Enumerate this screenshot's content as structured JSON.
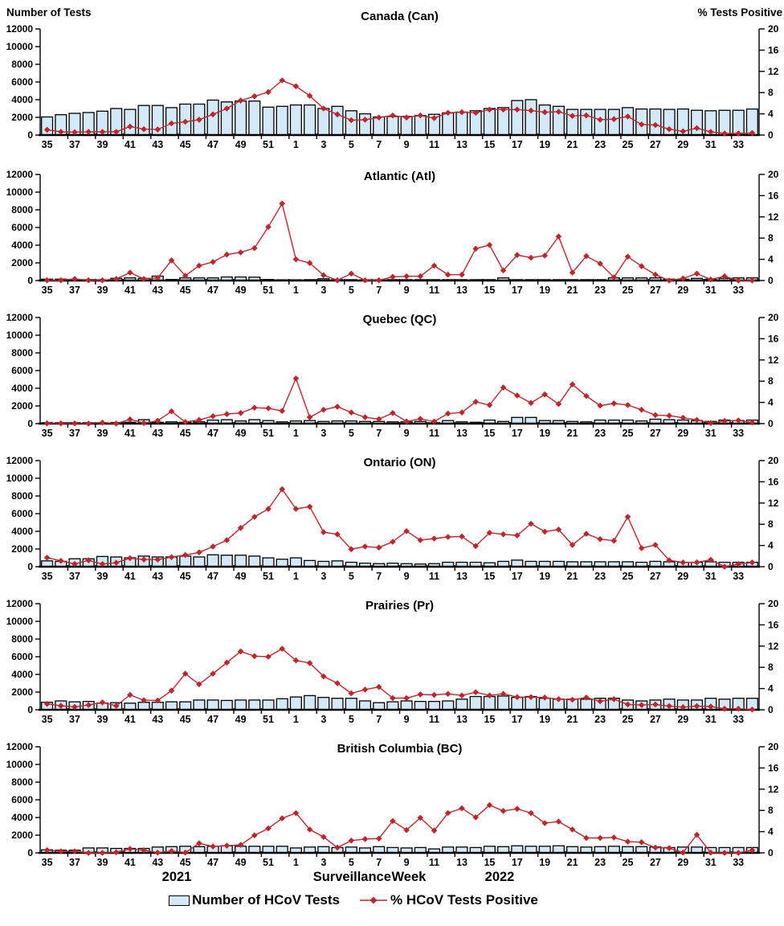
{
  "header": {
    "left_axis_title": "Number of Tests",
    "right_axis_title": "% Tests Positive"
  },
  "footer": {
    "year_left": "2021",
    "axis_title": "Surveillance Week",
    "year_right": "2022"
  },
  "legend": {
    "bars_label": "Number of HCoV Tests",
    "line_label": "% HCoV Tests Positive"
  },
  "colors": {
    "bar_fill": "#d3e9f8",
    "bar_stroke": "#000000",
    "line_color": "#c0252b"
  },
  "chart_data": [
    {
      "type": "bar",
      "title": "Canada (Can)",
      "categories": [
        35,
        36,
        37,
        38,
        39,
        40,
        41,
        42,
        43,
        44,
        45,
        46,
        47,
        48,
        49,
        50,
        51,
        52,
        1,
        2,
        3,
        4,
        5,
        6,
        7,
        8,
        9,
        10,
        11,
        12,
        13,
        14,
        15,
        16,
        17,
        18,
        19,
        20,
        21,
        22,
        23,
        24,
        25,
        26,
        27,
        28,
        29,
        30,
        31,
        32,
        33,
        34
      ],
      "series": [
        {
          "name": "Number of HCoV Tests",
          "type": "bar",
          "axis": "left",
          "values": [
            2050,
            2300,
            2450,
            2550,
            2700,
            3000,
            2900,
            3350,
            3350,
            3100,
            3500,
            3500,
            3950,
            3750,
            3850,
            3850,
            3150,
            3250,
            3400,
            3400,
            3000,
            3250,
            2750,
            2400,
            2050,
            2100,
            2100,
            2200,
            2350,
            2500,
            2600,
            2750,
            3000,
            3100,
            3900,
            4000,
            3400,
            3250,
            2900,
            2900,
            2900,
            2900,
            3100,
            2950,
            2950,
            2900,
            2950,
            2800,
            2750,
            2800,
            2800,
            2950
          ]
        },
        {
          "name": "% HCoV Tests Positive",
          "type": "line",
          "axis": "right",
          "values": [
            1.0,
            0.6,
            0.55,
            0.6,
            0.6,
            0.6,
            1.6,
            1.1,
            1.05,
            2.2,
            2.5,
            2.9,
            3.9,
            5.0,
            6.5,
            7.3,
            8.1,
            10.3,
            9.2,
            7.4,
            5.0,
            3.9,
            2.8,
            2.9,
            3.3,
            3.7,
            3.3,
            3.7,
            3.2,
            4.2,
            4.3,
            4.2,
            4.8,
            4.8,
            4.8,
            4.6,
            4.3,
            4.4,
            3.6,
            3.7,
            2.9,
            3.0,
            3.5,
            2.0,
            1.9,
            1.1,
            0.7,
            1.3,
            0.6,
            0.3,
            0.3,
            0.4
          ]
        }
      ],
      "left_axis": {
        "label": "Number of Tests",
        "min": 0,
        "max": 12000,
        "step": 2000
      },
      "right_axis": {
        "label": "% Tests Positive",
        "min": 0,
        "max": 20,
        "step": 4
      },
      "xlabel": "Surveillance Week",
      "grid": false,
      "x_tick_labels": "odd weeks only"
    },
    {
      "type": "bar",
      "title": "Atlantic (Atl)",
      "categories": [
        35,
        36,
        37,
        38,
        39,
        40,
        41,
        42,
        43,
        44,
        45,
        46,
        47,
        48,
        49,
        50,
        51,
        52,
        1,
        2,
        3,
        4,
        5,
        6,
        7,
        8,
        9,
        10,
        11,
        12,
        13,
        14,
        15,
        16,
        17,
        18,
        19,
        20,
        21,
        22,
        23,
        24,
        25,
        26,
        27,
        28,
        29,
        30,
        31,
        32,
        33,
        34
      ],
      "series": [
        {
          "name": "Number of HCoV Tests",
          "type": "bar",
          "axis": "left",
          "values": [
            150,
            150,
            100,
            100,
            80,
            250,
            300,
            250,
            500,
            120,
            300,
            300,
            300,
            400,
            400,
            380,
            120,
            80,
            80,
            100,
            200,
            100,
            100,
            80,
            80,
            100,
            100,
            100,
            100,
            100,
            100,
            100,
            100,
            300,
            100,
            100,
            100,
            100,
            100,
            100,
            100,
            300,
            300,
            300,
            300,
            150,
            150,
            250,
            150,
            250,
            300,
            300
          ]
        },
        {
          "name": "% HCoV Tests Positive",
          "type": "line",
          "axis": "right",
          "values": [
            0.05,
            0.05,
            0.3,
            0.05,
            0.05,
            0.3,
            1.5,
            0.3,
            0.5,
            3.8,
            0.9,
            2.8,
            3.5,
            4.9,
            5.3,
            6.1,
            10.1,
            14.5,
            4.0,
            3.3,
            1.0,
            0.05,
            1.3,
            0.05,
            0.05,
            0.7,
            0.8,
            0.8,
            2.8,
            1.1,
            1.1,
            6.0,
            6.7,
            1.9,
            4.8,
            4.3,
            4.7,
            8.3,
            1.5,
            4.6,
            3.2,
            0.6,
            4.5,
            2.7,
            1.1,
            0,
            0.4,
            1.3,
            0.2,
            0.8,
            0,
            0
          ]
        }
      ],
      "left_axis": {
        "label": "Number of Tests",
        "min": 0,
        "max": 12000,
        "step": 2000
      },
      "right_axis": {
        "label": "% Tests Positive",
        "min": 0,
        "max": 20,
        "step": 4
      },
      "xlabel": "Surveillance Week",
      "grid": false,
      "x_tick_labels": "odd weeks only"
    },
    {
      "type": "bar",
      "title": "Quebec (QC)",
      "categories": [
        35,
        36,
        37,
        38,
        39,
        40,
        41,
        42,
        43,
        44,
        45,
        46,
        47,
        48,
        49,
        50,
        51,
        52,
        1,
        2,
        3,
        4,
        5,
        6,
        7,
        8,
        9,
        10,
        11,
        12,
        13,
        14,
        15,
        16,
        17,
        18,
        19,
        20,
        21,
        22,
        23,
        24,
        25,
        26,
        27,
        28,
        29,
        30,
        31,
        32,
        33,
        34
      ],
      "series": [
        {
          "name": "Number of HCoV Tests",
          "type": "bar",
          "axis": "left",
          "values": [
            100,
            100,
            100,
            100,
            100,
            120,
            150,
            450,
            150,
            200,
            150,
            200,
            400,
            450,
            300,
            450,
            350,
            200,
            300,
            350,
            250,
            300,
            300,
            250,
            250,
            200,
            200,
            250,
            100,
            350,
            200,
            150,
            400,
            250,
            700,
            700,
            350,
            350,
            250,
            200,
            400,
            400,
            400,
            300,
            500,
            450,
            400,
            350,
            250,
            400,
            350,
            400
          ]
        },
        {
          "name": "% HCoV Tests Positive",
          "type": "line",
          "axis": "right",
          "values": [
            0.05,
            0.05,
            0.05,
            0.02,
            0.2,
            0.02,
            0.8,
            0.1,
            0.55,
            2.3,
            0.3,
            0.7,
            1.4,
            1.8,
            2.0,
            3.0,
            2.9,
            2.4,
            8.5,
            1.2,
            2.6,
            3.2,
            2.1,
            1.2,
            0.85,
            2.0,
            0.4,
            0.9,
            0.4,
            1.9,
            2.1,
            4.1,
            3.5,
            6.8,
            5.3,
            3.9,
            5.5,
            3.7,
            7.4,
            5.2,
            3.4,
            3.8,
            3.5,
            2.6,
            1.6,
            1.5,
            1.1,
            0.7,
            0.1,
            0.5,
            0.6,
            0.2
          ]
        }
      ],
      "left_axis": {
        "label": "Number of Tests",
        "min": 0,
        "max": 12000,
        "step": 2000
      },
      "right_axis": {
        "label": "% Tests Positive",
        "min": 0,
        "max": 20,
        "step": 4
      },
      "xlabel": "Surveillance Week",
      "grid": false,
      "x_tick_labels": "odd weeks only"
    },
    {
      "type": "bar",
      "title": "Ontario (ON)",
      "categories": [
        35,
        36,
        37,
        38,
        39,
        40,
        41,
        42,
        43,
        44,
        45,
        46,
        47,
        48,
        49,
        50,
        51,
        52,
        1,
        2,
        3,
        4,
        5,
        6,
        7,
        8,
        9,
        10,
        11,
        12,
        13,
        14,
        15,
        16,
        17,
        18,
        19,
        20,
        21,
        22,
        23,
        24,
        25,
        26,
        27,
        28,
        29,
        30,
        31,
        32,
        33,
        34
      ],
      "series": [
        {
          "name": "Number of HCoV Tests",
          "type": "bar",
          "axis": "left",
          "values": [
            650,
            600,
            900,
            900,
            1150,
            1100,
            1000,
            1200,
            1100,
            1100,
            1200,
            1100,
            1350,
            1300,
            1300,
            1200,
            1000,
            850,
            1000,
            700,
            600,
            650,
            500,
            400,
            350,
            400,
            350,
            300,
            350,
            500,
            500,
            500,
            450,
            600,
            750,
            600,
            600,
            600,
            550,
            550,
            550,
            550,
            550,
            500,
            600,
            550,
            500,
            500,
            550,
            500,
            500,
            500
          ]
        },
        {
          "name": "% HCoV Tests Positive",
          "type": "line",
          "axis": "right",
          "values": [
            1.7,
            1.1,
            0.5,
            1.2,
            0.5,
            0.75,
            1.6,
            1.35,
            1.35,
            1.8,
            2.2,
            2.7,
            3.8,
            5.0,
            7.3,
            9.4,
            10.9,
            14.6,
            10.9,
            11.3,
            6.5,
            6.1,
            3.3,
            3.8,
            3.6,
            4.7,
            6.7,
            5.0,
            5.3,
            5.6,
            5.7,
            3.9,
            6.4,
            6.1,
            5.9,
            8.1,
            6.6,
            7.0,
            4.1,
            6.2,
            5.2,
            4.9,
            9.4,
            3.5,
            4.1,
            1.2,
            0.8,
            0.8,
            1.3,
            0,
            0.5,
            0.8
          ]
        }
      ],
      "left_axis": {
        "label": "Number of Tests",
        "min": 0,
        "max": 12000,
        "step": 2000
      },
      "right_axis": {
        "label": "% Tests Positive",
        "min": 0,
        "max": 20,
        "step": 4
      },
      "xlabel": "Surveillance Week",
      "grid": false,
      "x_tick_labels": "odd weeks only"
    },
    {
      "type": "bar",
      "title": "Prairies (Pr)",
      "categories": [
        35,
        36,
        37,
        38,
        39,
        40,
        41,
        42,
        43,
        44,
        45,
        46,
        47,
        48,
        49,
        50,
        51,
        52,
        1,
        2,
        3,
        4,
        5,
        6,
        7,
        8,
        9,
        10,
        11,
        12,
        13,
        14,
        15,
        16,
        17,
        18,
        19,
        20,
        21,
        22,
        23,
        24,
        25,
        26,
        27,
        28,
        29,
        30,
        31,
        32,
        33,
        34
      ],
      "series": [
        {
          "name": "Number of HCoV Tests",
          "type": "bar",
          "axis": "left",
          "values": [
            850,
            1000,
            900,
            950,
            750,
            800,
            750,
            850,
            850,
            900,
            900,
            1100,
            1100,
            1050,
            1100,
            1100,
            1100,
            1250,
            1450,
            1600,
            1400,
            1300,
            1300,
            1000,
            800,
            900,
            1000,
            950,
            950,
            1000,
            1200,
            1500,
            1500,
            1550,
            1400,
            1500,
            1300,
            1200,
            1200,
            1200,
            1300,
            1300,
            1100,
            1000,
            1100,
            1200,
            1100,
            1100,
            1300,
            1200,
            1300,
            1300
          ]
        },
        {
          "name": "% HCoV Tests Positive",
          "type": "line",
          "axis": "right",
          "values": [
            1.1,
            0.75,
            0.55,
            0.9,
            1.4,
            0.75,
            2.8,
            1.8,
            1.75,
            3.6,
            6.8,
            4.8,
            6.8,
            8.9,
            11.0,
            10.1,
            10.0,
            11.5,
            9.3,
            8.8,
            6.3,
            5.0,
            3.1,
            3.8,
            4.3,
            2.2,
            2.2,
            2.9,
            2.8,
            3.0,
            2.7,
            3.3,
            2.7,
            3.0,
            2.4,
            2.4,
            2.3,
            2.0,
            1.9,
            2.3,
            1.6,
            2.0,
            1.0,
            0.9,
            1.0,
            0.7,
            0.5,
            0.7,
            0.6,
            0.2,
            0.2,
            0.05
          ]
        }
      ],
      "left_axis": {
        "label": "Number of Tests",
        "min": 0,
        "max": 12000,
        "step": 2000
      },
      "right_axis": {
        "label": "% Tests Positive",
        "min": 0,
        "max": 20,
        "step": 4
      },
      "xlabel": "Surveillance Week",
      "grid": false,
      "x_tick_labels": "odd weeks only"
    },
    {
      "type": "bar",
      "title": "British Columbia (BC)",
      "categories": [
        35,
        36,
        37,
        38,
        39,
        40,
        41,
        42,
        43,
        44,
        45,
        46,
        47,
        48,
        49,
        50,
        51,
        52,
        1,
        2,
        3,
        4,
        5,
        6,
        7,
        8,
        9,
        10,
        11,
        12,
        13,
        14,
        15,
        16,
        17,
        18,
        19,
        20,
        21,
        22,
        23,
        24,
        25,
        26,
        27,
        28,
        29,
        30,
        31,
        32,
        33,
        34
      ],
      "series": [
        {
          "name": "Number of HCoV Tests",
          "type": "bar",
          "axis": "left",
          "values": [
            350,
            300,
            300,
            550,
            550,
            500,
            500,
            500,
            650,
            700,
            750,
            700,
            750,
            800,
            750,
            750,
            750,
            750,
            550,
            650,
            700,
            600,
            650,
            550,
            700,
            600,
            550,
            600,
            450,
            650,
            650,
            600,
            750,
            700,
            800,
            750,
            750,
            800,
            700,
            650,
            700,
            750,
            700,
            700,
            650,
            600,
            650,
            650,
            600,
            600,
            600,
            600
          ]
        },
        {
          "name": "% HCoV Tests Positive",
          "type": "line",
          "axis": "right",
          "values": [
            0.5,
            0.3,
            0.3,
            0,
            0,
            0.1,
            0.75,
            0.5,
            0.05,
            0.35,
            0.05,
            1.8,
            1.2,
            1.35,
            1.5,
            3.3,
            4.6,
            6.5,
            7.5,
            4.4,
            3.0,
            1.0,
            2.3,
            2.6,
            2.7,
            6.0,
            4.3,
            6.6,
            4.2,
            7.5,
            8.4,
            6.7,
            9.0,
            7.9,
            8.3,
            7.5,
            5.6,
            5.9,
            4.4,
            2.8,
            2.8,
            2.9,
            2.1,
            2.0,
            1.0,
            0.9,
            0.05,
            3.4,
            0.05,
            0,
            0,
            0.5
          ]
        }
      ],
      "left_axis": {
        "label": "Number of Tests",
        "min": 0,
        "max": 12000,
        "step": 2000
      },
      "right_axis": {
        "label": "% Tests Positive",
        "min": 0,
        "max": 20,
        "step": 4
      },
      "xlabel": "Surveillance Week",
      "grid": false,
      "x_tick_labels": "odd weeks only"
    }
  ]
}
